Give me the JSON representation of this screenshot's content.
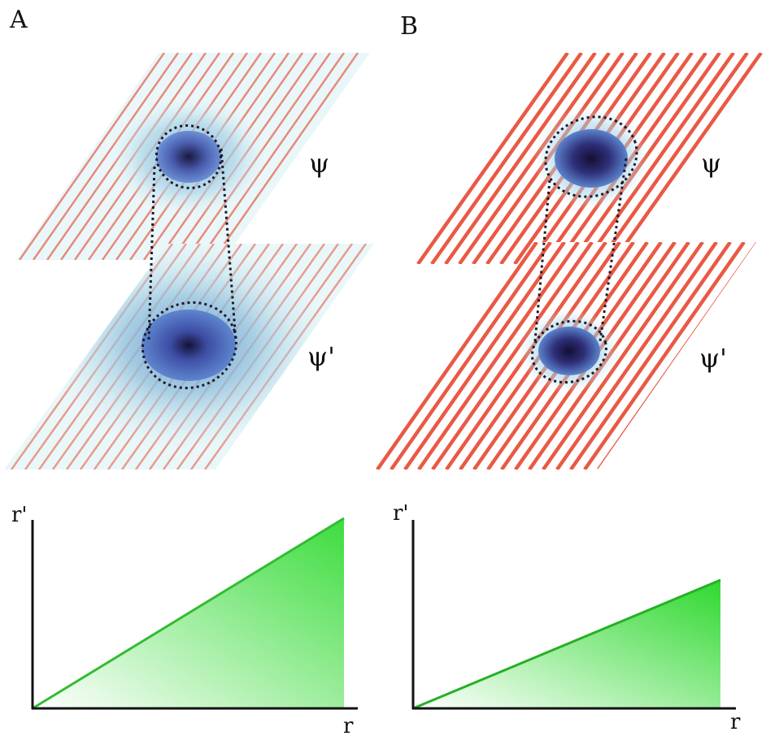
{
  "panels": [
    {
      "id": "A",
      "label": "A",
      "upper_plane_label": "ψ",
      "lower_plane_label": "ψ'",
      "stripe_color": "#e8503a",
      "blob_color": "#3b5aa8",
      "plot": {
        "x_label": "r",
        "y_label": "r'",
        "fill_color": "#3ddc3d",
        "relative_slope": 1.0
      }
    },
    {
      "id": "B",
      "label": "B",
      "upper_plane_label": "ψ",
      "lower_plane_label": "ψ'",
      "stripe_color": "#e8503a",
      "blob_color": "#3b5aa8",
      "plot": {
        "x_label": "r",
        "y_label": "r'",
        "fill_color": "#2ed82e",
        "relative_slope": 0.45
      }
    }
  ]
}
